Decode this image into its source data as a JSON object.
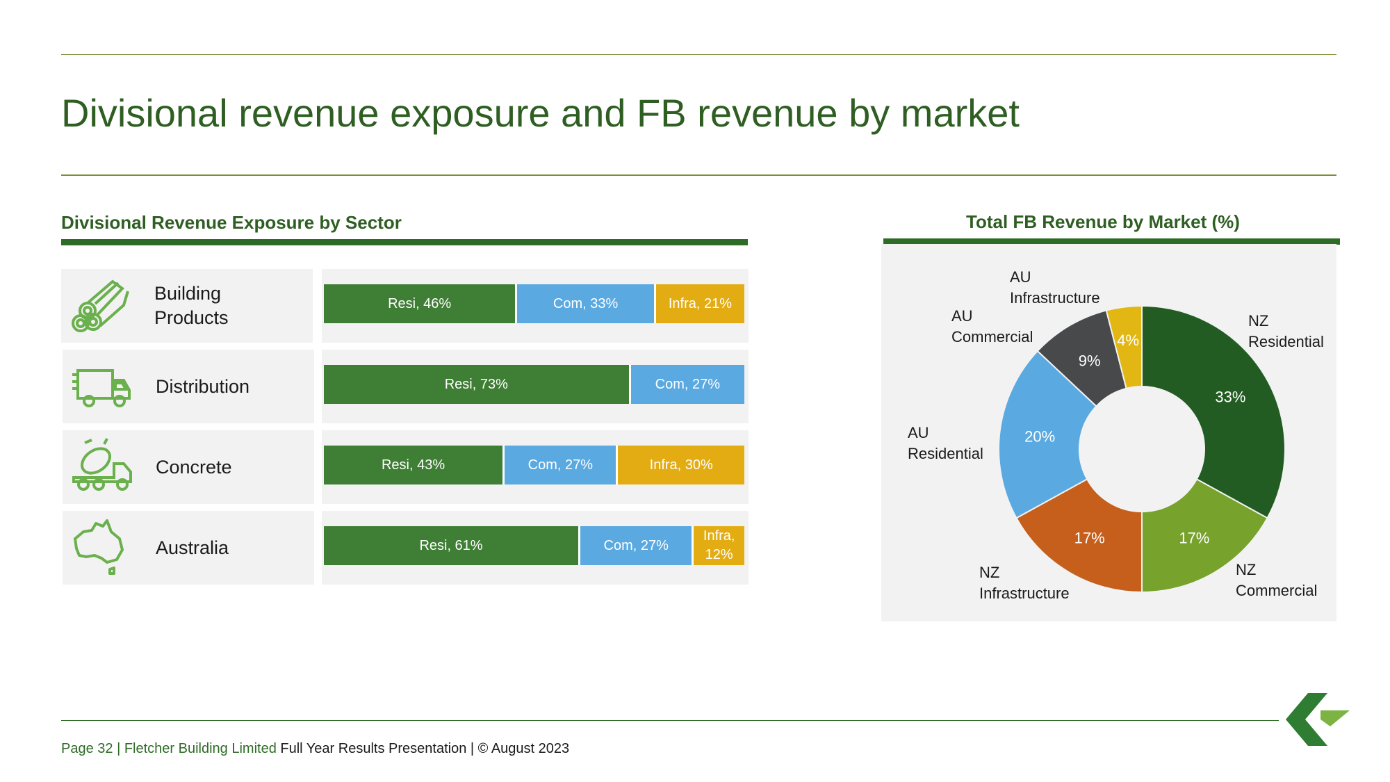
{
  "page_title": "Divisional revenue exposure and FB revenue by market",
  "left_section": {
    "title": "Divisional Revenue Exposure by Sector"
  },
  "right_section": {
    "title": "Total FB Revenue by Market (%)"
  },
  "colors": {
    "resi": "#3f7e35",
    "com": "#5aa9e1",
    "infra": "#e2ac12",
    "title_green": "#2e5e22"
  },
  "chart_data": [
    {
      "type": "bar",
      "stacked": true,
      "orientation": "horizontal",
      "title": "Divisional Revenue Exposure by Sector",
      "categories": [
        "Building Products",
        "Distribution",
        "Concrete",
        "Australia"
      ],
      "rows": [
        {
          "label": "Building\nProducts",
          "icon": "pipes-icon",
          "segments": [
            {
              "key": "resi",
              "value": 46,
              "text": "Resi, 46%"
            },
            {
              "key": "com",
              "value": 33,
              "text": "Com, 33%"
            },
            {
              "key": "infra",
              "value": 21,
              "text": "Infra, 21%"
            }
          ]
        },
        {
          "label": "Distribution",
          "icon": "truck-icon",
          "segments": [
            {
              "key": "resi",
              "value": 73,
              "text": "Resi, 73%"
            },
            {
              "key": "com",
              "value": 27,
              "text": "Com, 27%"
            }
          ]
        },
        {
          "label": "Concrete",
          "icon": "concrete-mixer-icon",
          "segments": [
            {
              "key": "resi",
              "value": 43,
              "text": "Resi, 43%"
            },
            {
              "key": "com",
              "value": 27,
              "text": "Com, 27%"
            },
            {
              "key": "infra",
              "value": 30,
              "text": "Infra, 30%"
            }
          ]
        },
        {
          "label": "Australia",
          "icon": "australia-map-icon",
          "segments": [
            {
              "key": "resi",
              "value": 61,
              "text": "Resi, 61%"
            },
            {
              "key": "com",
              "value": 27,
              "text": "Com, 27%"
            },
            {
              "key": "infra",
              "value": 12,
              "text": "Infra,\n12%"
            }
          ]
        }
      ]
    },
    {
      "type": "pie",
      "donut": true,
      "title": "Total FB Revenue by Market (%)",
      "slices": [
        {
          "name": "NZ\nResidential",
          "value": 33,
          "label": "33%",
          "color": "#225c22"
        },
        {
          "name": "NZ\nCommercial",
          "value": 17,
          "label": "17%",
          "color": "#77a22c"
        },
        {
          "name": "NZ\nInfrastructure",
          "value": 17,
          "label": "17%",
          "color": "#c55f1b"
        },
        {
          "name": "AU\nResidential",
          "value": 20,
          "label": "20%",
          "color": "#5aa9e1"
        },
        {
          "name": "AU\nCommercial",
          "value": 9,
          "label": "9%",
          "color": "#48494b"
        },
        {
          "name": "AU\nInfrastructure",
          "value": 4,
          "label": "4%",
          "color": "#e2b714"
        }
      ]
    }
  ],
  "footer": {
    "page": "Page 32 | Fletcher Building Limited",
    "rest": " Full Year Results Presentation | © August 2023"
  }
}
